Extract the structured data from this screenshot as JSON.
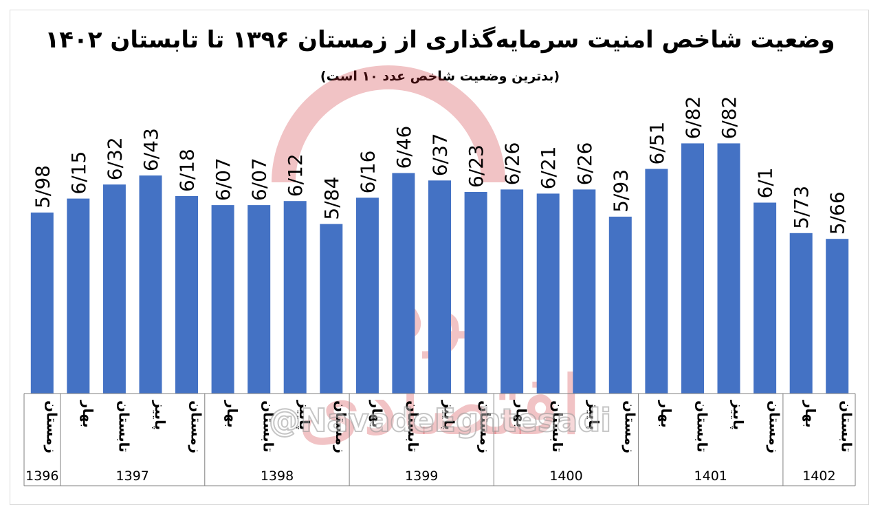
{
  "chart_data": {
    "type": "bar",
    "title": "وضعیت شاخص امنیت سرمایه‌گذاری از زمستان ۱۳۹۶ تا تابستان ۱۴۰۲",
    "subtitle": "(بدترین وضعیت شاخص عدد ۱۰ است)",
    "categories": [
      {
        "season": "زمستان",
        "year": "1396"
      },
      {
        "season": "بهار",
        "year": "1397"
      },
      {
        "season": "تابستان",
        "year": "1397"
      },
      {
        "season": "پاییز",
        "year": "1397"
      },
      {
        "season": "زمستان",
        "year": "1397"
      },
      {
        "season": "بهار",
        "year": "1398"
      },
      {
        "season": "تابستان",
        "year": "1398"
      },
      {
        "season": "پاییز",
        "year": "1398"
      },
      {
        "season": "زمستان",
        "year": "1398"
      },
      {
        "season": "بهار",
        "year": "1399"
      },
      {
        "season": "تابستان",
        "year": "1399"
      },
      {
        "season": "پاییز",
        "year": "1399"
      },
      {
        "season": "زمستان",
        "year": "1399"
      },
      {
        "season": "بهار",
        "year": "1400"
      },
      {
        "season": "تابستان",
        "year": "1400"
      },
      {
        "season": "پاییز",
        "year": "1400"
      },
      {
        "season": "زمستان",
        "year": "1400"
      },
      {
        "season": "بهار",
        "year": "1401"
      },
      {
        "season": "تابستان",
        "year": "1401"
      },
      {
        "season": "پاییز",
        "year": "1401"
      },
      {
        "season": "زمستان",
        "year": "1401"
      },
      {
        "season": "بهار",
        "year": "1402"
      },
      {
        "season": "تابستان",
        "year": "1402"
      }
    ],
    "values": [
      5.98,
      6.15,
      6.32,
      6.43,
      6.18,
      6.07,
      6.07,
      6.12,
      5.84,
      6.16,
      6.46,
      6.37,
      6.23,
      6.26,
      6.21,
      6.26,
      5.93,
      6.51,
      6.82,
      6.82,
      6.1,
      5.73,
      5.66
    ],
    "value_labels": [
      "5/98",
      "6/15",
      "6/32",
      "6/43",
      "6/18",
      "6/07",
      "6/07",
      "6/12",
      "5/84",
      "6/16",
      "6/46",
      "6/37",
      "6/23",
      "6/26",
      "6/21",
      "6/26",
      "5/93",
      "6/51",
      "6/82",
      "6/82",
      "6/1",
      "5/73",
      "5/66"
    ],
    "years": [
      "1396",
      "1397",
      "1398",
      "1399",
      "1400",
      "1401",
      "1402"
    ],
    "ylim": [
      3.78,
      7.2
    ],
    "bar_color": "#4472c4",
    "grid": false,
    "legend": "none"
  },
  "watermark": {
    "handle": "@NavadeEghtesadi",
    "brand_text": "نود اقتصادی",
    "color": "#cd282d"
  }
}
